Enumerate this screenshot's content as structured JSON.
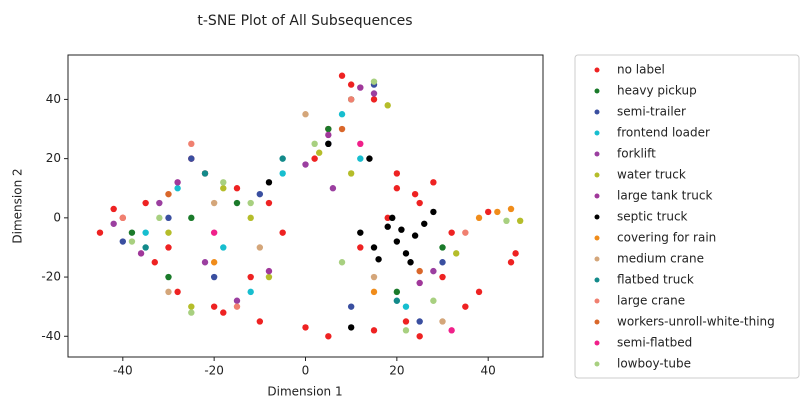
{
  "chart_data": {
    "type": "scatter",
    "title": "t-SNE Plot of All Subsequences",
    "x_label": "Dimension 1",
    "y_label": "Dimension 2",
    "xlim": [
      -52,
      52
    ],
    "ylim": [
      -47,
      55
    ],
    "xticks": [
      -40,
      -20,
      0,
      20,
      40
    ],
    "yticks": [
      -40,
      -20,
      0,
      20,
      40
    ],
    "legend": "outside right",
    "series": [
      {
        "name": "no label",
        "color": "#ee2222",
        "x": [
          -45,
          -40,
          -35,
          -30,
          -25,
          -20,
          -15,
          -10,
          -5,
          0,
          5,
          10,
          15,
          20,
          25,
          30,
          35,
          40,
          45,
          -28,
          -22,
          -12,
          2,
          8,
          12,
          18,
          22,
          28,
          32,
          38,
          -42,
          -33,
          -18,
          -8,
          5,
          15,
          25,
          20,
          24,
          46
        ],
        "values": [
          -5,
          0,
          5,
          -10,
          20,
          -30,
          10,
          -35,
          -5,
          -37,
          30,
          45,
          40,
          10,
          5,
          -20,
          -30,
          2,
          -15,
          -25,
          15,
          -20,
          20,
          48,
          -10,
          0,
          -35,
          12,
          -5,
          -25,
          3,
          -15,
          -32,
          5,
          -40,
          -38,
          -40,
          15,
          8,
          -12
        ]
      },
      {
        "name": "heavy pickup",
        "color": "#1a7a2a",
        "x": [
          -30,
          -15,
          5,
          20,
          -25,
          10,
          30,
          -38
        ],
        "values": [
          -20,
          5,
          30,
          -25,
          0,
          40,
          -10,
          -5
        ]
      },
      {
        "name": "semi-trailer",
        "color": "#3a4fa0",
        "x": [
          -40,
          -25,
          -20,
          -10,
          5,
          15,
          30,
          -30,
          10,
          25
        ],
        "values": [
          -8,
          20,
          -20,
          8,
          25,
          45,
          -15,
          0,
          -30,
          -35
        ]
      },
      {
        "name": "frontend loader",
        "color": "#17becf",
        "x": [
          -35,
          -18,
          -5,
          8,
          22,
          -28,
          12,
          -12
        ],
        "values": [
          -5,
          -10,
          15,
          35,
          -30,
          10,
          20,
          -25
        ]
      },
      {
        "name": "forklift",
        "color": "#9b3fa0",
        "x": [
          -32,
          -15,
          0,
          15,
          28,
          -22,
          6,
          -42
        ],
        "values": [
          5,
          -28,
          18,
          42,
          -18,
          -15,
          10,
          -2
        ]
      },
      {
        "name": "water truck",
        "color": "#b5bd2a",
        "x": [
          -25,
          -12,
          3,
          18,
          33,
          -30,
          10,
          -18,
          47,
          -8
        ],
        "values": [
          -30,
          0,
          22,
          38,
          -12,
          -5,
          15,
          10,
          -1,
          -20
        ]
      },
      {
        "name": "large tank truck",
        "color": "#a0389a",
        "x": [
          -28,
          -8,
          12,
          25,
          -36,
          5
        ],
        "values": [
          12,
          -18,
          44,
          -22,
          -12,
          28
        ]
      },
      {
        "name": "septic truck",
        "color": "#000000",
        "x": [
          12,
          15,
          18,
          20,
          22,
          24,
          26,
          28,
          16,
          19,
          23,
          10,
          5,
          -8,
          14,
          21
        ],
        "values": [
          -5,
          -10,
          -3,
          -8,
          -12,
          -6,
          -2,
          2,
          -14,
          0,
          -15,
          -37,
          25,
          12,
          20,
          -4
        ]
      },
      {
        "name": "covering for rain",
        "color": "#f08c1a",
        "x": [
          42,
          38,
          45,
          -20,
          15
        ],
        "values": [
          2,
          0,
          3,
          -15,
          -25
        ]
      },
      {
        "name": "medium crane",
        "color": "#d4a67a",
        "x": [
          -30,
          -20,
          0,
          15,
          30,
          -10
        ],
        "values": [
          -25,
          5,
          35,
          -20,
          -35,
          -10
        ]
      },
      {
        "name": "flatbed truck",
        "color": "#138a8a",
        "x": [
          -35,
          -5,
          20,
          -22
        ],
        "values": [
          -10,
          20,
          -28,
          15
        ]
      },
      {
        "name": "large crane",
        "color": "#f08070",
        "x": [
          -40,
          -15,
          10,
          35,
          -25
        ],
        "values": [
          0,
          -30,
          40,
          -5,
          25
        ]
      },
      {
        "name": "workers-unroll-white-thing",
        "color": "#d9672a",
        "x": [
          -30,
          8,
          25
        ],
        "values": [
          8,
          30,
          -18
        ]
      },
      {
        "name": "semi-flatbed",
        "color": "#f0208a",
        "x": [
          -20,
          12,
          32
        ],
        "values": [
          -5,
          25,
          -38
        ]
      },
      {
        "name": "lowboy-tube",
        "color": "#a8d080",
        "x": [
          -38,
          -25,
          -12,
          2,
          15,
          28,
          -32,
          -18,
          8,
          22,
          44
        ],
        "values": [
          -8,
          -32,
          5,
          25,
          46,
          -28,
          0,
          12,
          -15,
          -38,
          -1
        ]
      }
    ]
  }
}
